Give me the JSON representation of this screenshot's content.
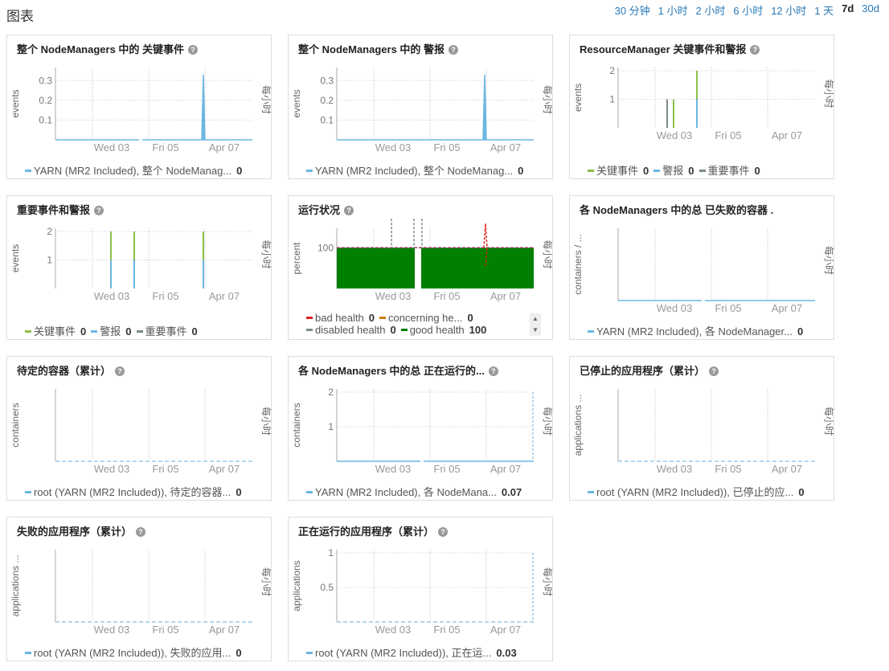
{
  "header": {
    "title": "图表"
  },
  "time_ranges": [
    {
      "label": "30 分钟",
      "active": false
    },
    {
      "label": "1 小时",
      "active": false
    },
    {
      "label": "2 小时",
      "active": false
    },
    {
      "label": "6 小时",
      "active": false
    },
    {
      "label": "12 小时",
      "active": false
    },
    {
      "label": "1 天",
      "active": false
    },
    {
      "label": "7d",
      "active": true
    },
    {
      "label": "30d",
      "active": false
    }
  ],
  "right_axis_label": "每小时",
  "x_ticks": [
    "Wed 03",
    "Fri 05",
    "Apr 07"
  ],
  "colors": {
    "blue": "#6ab7e2",
    "green": "#8cbf45",
    "gray": "#7a8a8a",
    "red": "#e02020",
    "orange": "#cc7a00",
    "darkgreen": "#008000",
    "dashed": "#9cc9e8"
  },
  "chart_data": [
    {
      "id": "c1",
      "type": "line",
      "title": "整个 NodeManagers 中的 关键事件",
      "ylabel": "events",
      "yticks": [
        "0.3",
        "0.2",
        "0.1"
      ],
      "ylim": [
        0,
        0.35
      ],
      "series": [
        {
          "name": "YARN (MR2 Included), 整个 NodeManag...",
          "color": "#6ab7e2",
          "value": "0",
          "points": [
            [
              0,
              0
            ],
            [
              0.18,
              0
            ],
            [
              0.78,
              0
            ],
            [
              0.79,
              0.33
            ],
            [
              0.8,
              0
            ],
            [
              1,
              0
            ]
          ]
        }
      ]
    },
    {
      "id": "c2",
      "type": "line",
      "title": "整个 NodeManagers 中的 警报",
      "ylabel": "events",
      "yticks": [
        "0.3",
        "0.2",
        "0.1"
      ],
      "ylim": [
        0,
        0.35
      ],
      "series": [
        {
          "name": "YARN (MR2 Included), 整个 NodeManag...",
          "color": "#6ab7e2",
          "value": "0",
          "points": [
            [
              0,
              0
            ],
            [
              0.78,
              0
            ],
            [
              0.79,
              0.33
            ],
            [
              0.8,
              0
            ],
            [
              1,
              0
            ]
          ]
        }
      ]
    },
    {
      "id": "c3",
      "type": "bar",
      "title": "ResourceManager 关键事件和警报",
      "ylabel": "events",
      "yticks": [
        "2",
        "1"
      ],
      "ylim": [
        0,
        2
      ],
      "series": [
        {
          "name": "关键事件",
          "color": "#8cbf45",
          "value": "0"
        },
        {
          "name": "警报",
          "color": "#6ab7e2",
          "value": "0"
        },
        {
          "name": "重要事件",
          "color": "#7a8a8a",
          "value": "0"
        }
      ]
    },
    {
      "id": "c4",
      "type": "bar",
      "title": "重要事件和警报",
      "ylabel": "events",
      "yticks": [
        "2",
        "1"
      ],
      "ylim": [
        0,
        2
      ],
      "series": [
        {
          "name": "关键事件",
          "color": "#8cbf45",
          "value": "0"
        },
        {
          "name": "警报",
          "color": "#6ab7e2",
          "value": "0"
        },
        {
          "name": "重要事件",
          "color": "#7a8a8a",
          "value": "0"
        }
      ]
    },
    {
      "id": "c5",
      "type": "area",
      "title": "运行状况",
      "ylabel": "percent",
      "yticks": [
        "100"
      ],
      "ylim": [
        0,
        140
      ],
      "series": [
        {
          "name": "bad health",
          "color": "#e02020",
          "value": "0"
        },
        {
          "name": "concerning he...",
          "color": "#cc7a00",
          "value": "0"
        },
        {
          "name": "disabled health",
          "color": "#7a8a8a",
          "value": "0"
        },
        {
          "name": "good health",
          "color": "#008000",
          "value": "100"
        }
      ]
    },
    {
      "id": "c6",
      "type": "line",
      "title": "各 NodeManagers 中的总 已失败的容器 .",
      "ylabel": "containers / ...",
      "yticks": [],
      "ylim": [
        0,
        1
      ],
      "series": [
        {
          "name": "YARN (MR2 Included), 各 NodeManager...",
          "color": "#6ab7e2",
          "value": "0"
        }
      ]
    },
    {
      "id": "c7",
      "type": "line",
      "title": "待定的容器（累计）",
      "ylabel": "containers",
      "yticks": [],
      "ylim": [
        0,
        1
      ],
      "series": [
        {
          "name": "root (YARN (MR2 Included)), 待定的容器...",
          "color": "#6ab7e2",
          "value": "0"
        }
      ]
    },
    {
      "id": "c8",
      "type": "line",
      "title": "各 NodeManagers 中的总 正在运行的...",
      "ylabel": "containers",
      "yticks": [
        "2",
        "1"
      ],
      "ylim": [
        0,
        2
      ],
      "series": [
        {
          "name": "YARN (MR2 Included), 各 NodeMana...",
          "color": "#6ab7e2",
          "value": "0.07"
        }
      ]
    },
    {
      "id": "c9",
      "type": "line",
      "title": "已停止的应用程序（累计）",
      "ylabel": "applications ...",
      "yticks": [],
      "ylim": [
        0,
        1
      ],
      "series": [
        {
          "name": "root (YARN (MR2 Included)), 已停止的应...",
          "color": "#6ab7e2",
          "value": "0"
        }
      ]
    },
    {
      "id": "c10",
      "type": "line",
      "title": "失败的应用程序（累计）",
      "ylabel": "applications ...",
      "yticks": [],
      "ylim": [
        0,
        1
      ],
      "series": [
        {
          "name": "root (YARN (MR2 Included)), 失败的应用...",
          "color": "#6ab7e2",
          "value": "0"
        }
      ]
    },
    {
      "id": "c11",
      "type": "line",
      "title": "正在运行的应用程序（累计）",
      "ylabel": "applications",
      "yticks": [
        "1",
        "0.5"
      ],
      "ylim": [
        0,
        1
      ],
      "series": [
        {
          "name": "root (YARN (MR2 Included)), 正在运...",
          "color": "#6ab7e2",
          "value": "0.03"
        }
      ]
    }
  ]
}
